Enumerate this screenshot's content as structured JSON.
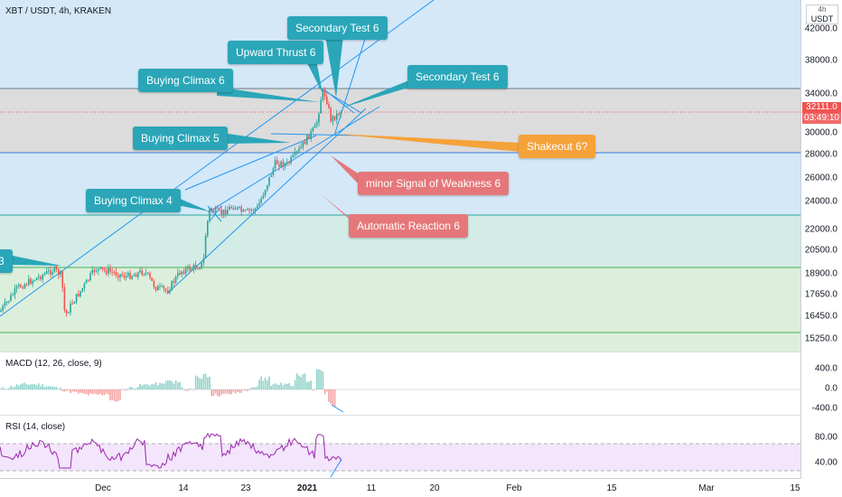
{
  "header": {
    "symbol": "XBT / USDT, 4h, KRAKEN",
    "currency": "USDT",
    "currency_top": "4",
    "currency_suffix": "h"
  },
  "price_axis": {
    "labels": [
      "42000.0",
      "38000.0",
      "34000.0",
      "30000.0",
      "28000.0",
      "26000.0",
      "24000.0",
      "22000.0",
      "20500.0",
      "18900.0",
      "17650.0",
      "16450.0",
      "15250.0"
    ]
  },
  "last_price": {
    "price": "32111.0",
    "countdown": "03:49:10"
  },
  "macd": {
    "title": "MACD (12, 26, close, 9)",
    "labels": [
      "400.0",
      "0.0",
      "-400.0"
    ]
  },
  "rsi": {
    "title": "RSI (14, close)",
    "labels": [
      "80.00",
      "40.00"
    ]
  },
  "time_axis": {
    "labels": [
      "Dec",
      "14",
      "23",
      "2021",
      "11",
      "20",
      "Feb",
      "15",
      "Mar",
      "15"
    ]
  },
  "annotations": {
    "secondary_test_top": "Secondary Test 6",
    "upward_thrust": "Upward Thrust 6",
    "buying_climax_6": "Buying Climax 6",
    "secondary_test_right": "Secondary Test 6",
    "buying_climax_5": "Buying Climax 5",
    "shakeout": "Shakeout 6?",
    "minor_sow": "minor Signal of Weakness 6",
    "buying_climax_4": "Buying Climax 4",
    "automatic_reaction": "Automatic Reaction 6",
    "left_edge": "3"
  },
  "colors": {
    "teal": "#2aa6b8",
    "red": "#e5777a",
    "orange": "#f5a23a",
    "bull": "#26a69a",
    "bear": "#ef5350",
    "trend": "#2196f3",
    "rsi": "#9c27b0"
  }
}
